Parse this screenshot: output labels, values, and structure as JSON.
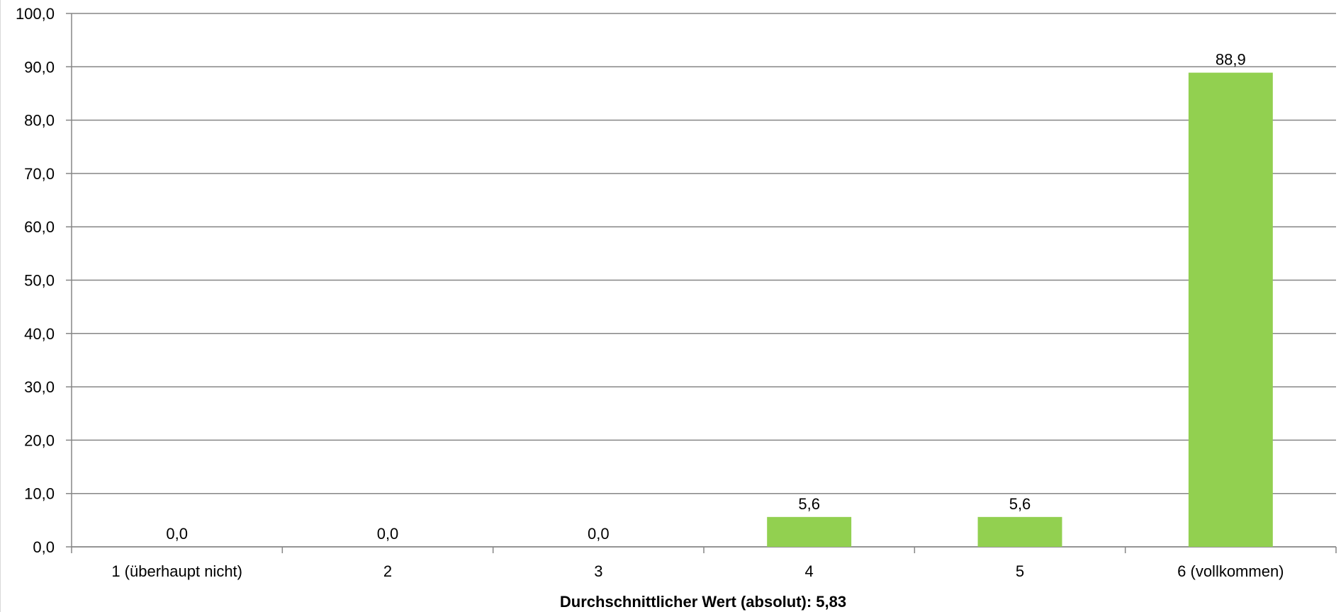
{
  "chart_data": {
    "type": "bar",
    "categories": [
      "1 (überhaupt nicht)",
      "2",
      "3",
      "4",
      "5",
      "6 (vollkommen)"
    ],
    "values": [
      0.0,
      0.0,
      0.0,
      5.6,
      5.6,
      88.9
    ],
    "value_labels": [
      "0,0",
      "0,0",
      "0,0",
      "5,6",
      "5,6",
      "88,9"
    ],
    "y_ticks": [
      "0,0",
      "10,0",
      "20,0",
      "30,0",
      "40,0",
      "50,0",
      "60,0",
      "70,0",
      "80,0",
      "90,0",
      "100,0"
    ],
    "ylim": [
      0,
      100
    ],
    "xlabel": "Durchschnittlicher Wert (absolut): 5,83",
    "ylabel": "",
    "title": "",
    "grid": true,
    "legend": "none",
    "bar_color": "#92d050",
    "grid_color": "#868686"
  }
}
